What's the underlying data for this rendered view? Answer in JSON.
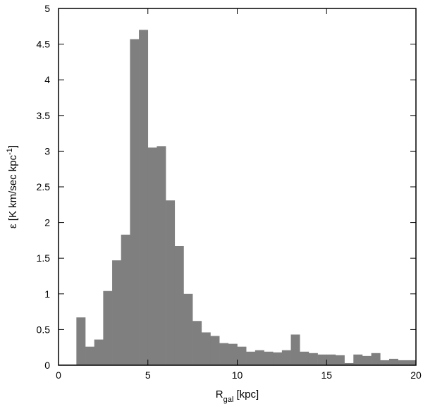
{
  "chart_data": {
    "type": "bar",
    "title": "",
    "xlabel": {
      "main": "R",
      "sub": "gal",
      "rest": " [kpc]"
    },
    "ylabel": {
      "main": "ε [K km/sec kpc",
      "sup": "-1",
      "rest": "]"
    },
    "xlim": [
      0,
      20
    ],
    "ylim": [
      0,
      5
    ],
    "xticks": [
      0,
      5,
      10,
      15,
      20
    ],
    "yticks": [
      0,
      0.5,
      1,
      1.5,
      2,
      2.5,
      3,
      3.5,
      4,
      4.5,
      5
    ],
    "xtick_labels": [
      "0",
      "5",
      "10",
      "15",
      "20"
    ],
    "ytick_labels": [
      "0",
      "0.5",
      "1",
      "1.5",
      "2",
      "2.5",
      "3",
      "3.5",
      "4",
      "4.5",
      "5"
    ],
    "bin_width": 0.5,
    "bin_starts": [
      0,
      0.5,
      1,
      1.5,
      2,
      2.5,
      3,
      3.5,
      4,
      4.5,
      5,
      5.5,
      6,
      6.5,
      7,
      7.5,
      8,
      8.5,
      9,
      9.5,
      10,
      10.5,
      11,
      11.5,
      12,
      12.5,
      13,
      13.5,
      14,
      14.5,
      15,
      15.5,
      16,
      16.5,
      17,
      17.5,
      18,
      18.5,
      19,
      19.5
    ],
    "values": [
      0.01,
      0.01,
      0.67,
      0.26,
      0.36,
      1.04,
      1.47,
      1.83,
      4.57,
      4.7,
      3.05,
      3.07,
      2.31,
      1.67,
      1.0,
      0.62,
      0.46,
      0.41,
      0.31,
      0.3,
      0.26,
      0.19,
      0.21,
      0.19,
      0.18,
      0.21,
      0.43,
      0.19,
      0.17,
      0.15,
      0.15,
      0.14,
      0.03,
      0.15,
      0.13,
      0.17,
      0.07,
      0.09,
      0.07,
      0.07
    ],
    "bar_color": "#7f7f7f",
    "grid": false,
    "legend": "none"
  }
}
